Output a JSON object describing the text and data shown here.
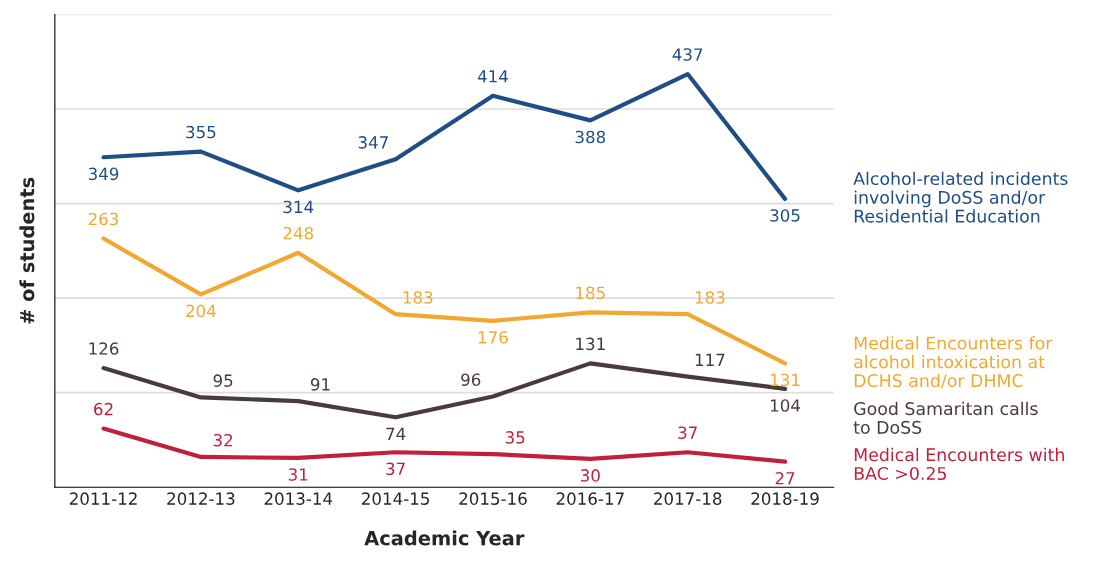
{
  "chart_data": {
    "type": "line",
    "xlabel": "Academic Year",
    "ylabel": "# of students",
    "categories": [
      "2011-12",
      "2012-13",
      "2013-14",
      "2014-15",
      "2015-16",
      "2016-17",
      "2017-18",
      "2018-19"
    ],
    "series": [
      {
        "name": "Alcohol-related incidents\ninvolving DoSS and/or\nResidential Education",
        "color": "#1f4e86",
        "values": [
          349,
          355,
          314,
          347,
          414,
          388,
          437,
          305
        ]
      },
      {
        "name": "Medical Encounters for\nalcohol intoxication at\nDCHS and/or DHMC",
        "color": "#f0a830",
        "values": [
          263,
          204,
          248,
          183,
          176,
          185,
          183,
          131
        ]
      },
      {
        "name": "Good Samaritan calls\nto DoSS",
        "color": "#4a3b3b",
        "values": [
          126,
          95,
          91,
          74,
          96,
          131,
          117,
          104
        ]
      },
      {
        "name": "Medical Encounters with\nBAC >0.25",
        "color": "#c0203a",
        "values": [
          62,
          32,
          31,
          37,
          35,
          30,
          37,
          27
        ]
      }
    ],
    "ylim": [
      0,
      500
    ],
    "yticks": [
      {
        "value": 100,
        "label": null
      },
      {
        "value": 200,
        "label": null
      },
      {
        "value": 300,
        "label": null
      },
      {
        "value": 400,
        "label": null
      },
      {
        "value": 500,
        "label": null
      }
    ],
    "grid": "y",
    "data_labels": true,
    "legend": "right",
    "tick_labels": "x",
    "marker": "none",
    "line_style": "solid"
  }
}
